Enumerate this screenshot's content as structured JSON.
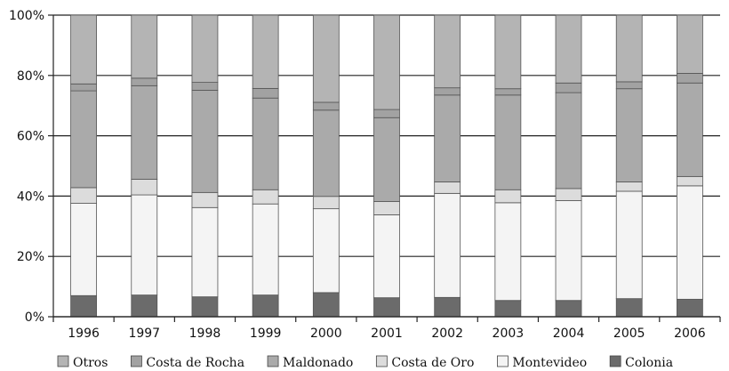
{
  "chart_data": {
    "type": "bar",
    "stacked": true,
    "percent": true,
    "categories": [
      "1996",
      "1997",
      "1998",
      "1999",
      "2000",
      "2001",
      "2002",
      "2003",
      "2004",
      "2005",
      "2006"
    ],
    "y_ticks": [
      "0%",
      "20%",
      "40%",
      "60%",
      "80%",
      "100%"
    ],
    "ylim": [
      0,
      100
    ],
    "grid": true,
    "legend_position": "bottom",
    "series": [
      {
        "name": "Colonia",
        "color": "#6b6b6b",
        "values": [
          7,
          7.2,
          6.6,
          7.2,
          8,
          6.3,
          6.4,
          5.4,
          5.4,
          6,
          5.8
        ]
      },
      {
        "name": "Montevideo",
        "color": "#f4f4f4",
        "values": [
          30.6,
          33.2,
          29.6,
          30.2,
          27.8,
          27.5,
          34.5,
          32.4,
          33.1,
          35.6,
          37.6
        ]
      },
      {
        "name": "Costa de Oro",
        "color": "#dcdcdc",
        "values": [
          5.2,
          5.2,
          5.0,
          4.7,
          4.1,
          4.4,
          3.8,
          4.3,
          4.0,
          3.1,
          3.1
        ]
      },
      {
        "name": "Maldonado",
        "color": "#aaaaaa",
        "values": [
          32.1,
          31,
          33.9,
          30.4,
          28.6,
          27.8,
          28.8,
          31.4,
          31.8,
          30.9,
          31
        ]
      },
      {
        "name": "Costa de Rocha",
        "color": "#a2a2a2",
        "values": [
          2.3,
          2.5,
          2.6,
          3.2,
          2.6,
          2.7,
          2.4,
          2.1,
          3.2,
          2.3,
          3.2
        ]
      },
      {
        "name": "Otros",
        "color": "#b4b4b4",
        "values": [
          22.8,
          20.9,
          22.3,
          24.3,
          28.9,
          31.3,
          24.1,
          24.4,
          22.5,
          22.1,
          19.3
        ]
      }
    ],
    "legend_order": [
      "Otros",
      "Costa de Rocha",
      "Maldonado",
      "Costa de Oro",
      "Montevideo",
      "Colonia"
    ]
  }
}
